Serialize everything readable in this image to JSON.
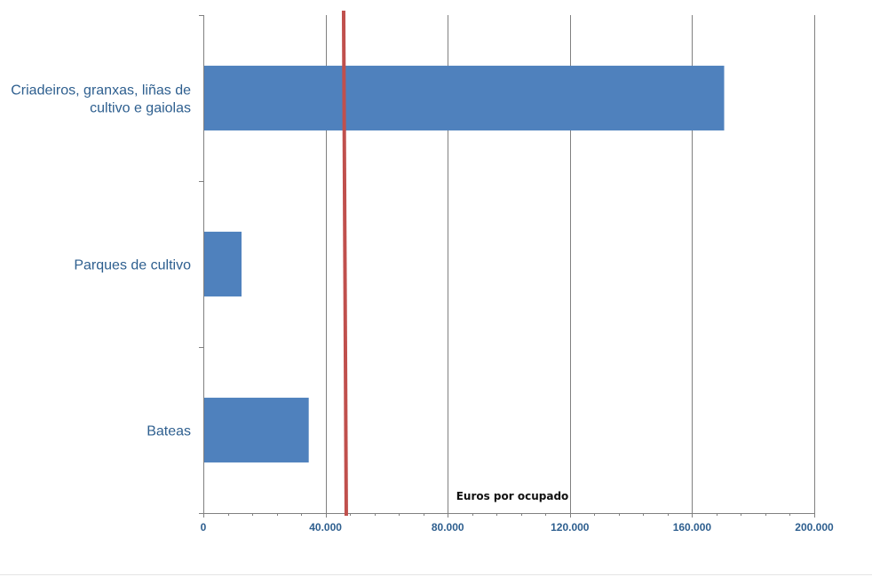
{
  "chart_data": {
    "type": "bar",
    "orientation": "horizontal",
    "categories": [
      [
        "Criadeiros, granxas, liñas de",
        "cultivo e gaiolas"
      ],
      [
        "Parques de cultivo"
      ],
      [
        "Bateas"
      ]
    ],
    "values": [
      170500,
      12500,
      34500
    ],
    "reference_line": {
      "value": 46500,
      "color": "#c0504d"
    },
    "xlabel": "Euros por ocupado",
    "xlim": [
      0,
      200000
    ],
    "x_ticks": [
      0,
      40000,
      80000,
      120000,
      160000,
      200000
    ],
    "x_tick_labels": [
      "0",
      "40.000",
      "80.000",
      "120.000",
      "160.000",
      "200.000"
    ],
    "grid": true,
    "bar_color": "#4f81bd"
  }
}
